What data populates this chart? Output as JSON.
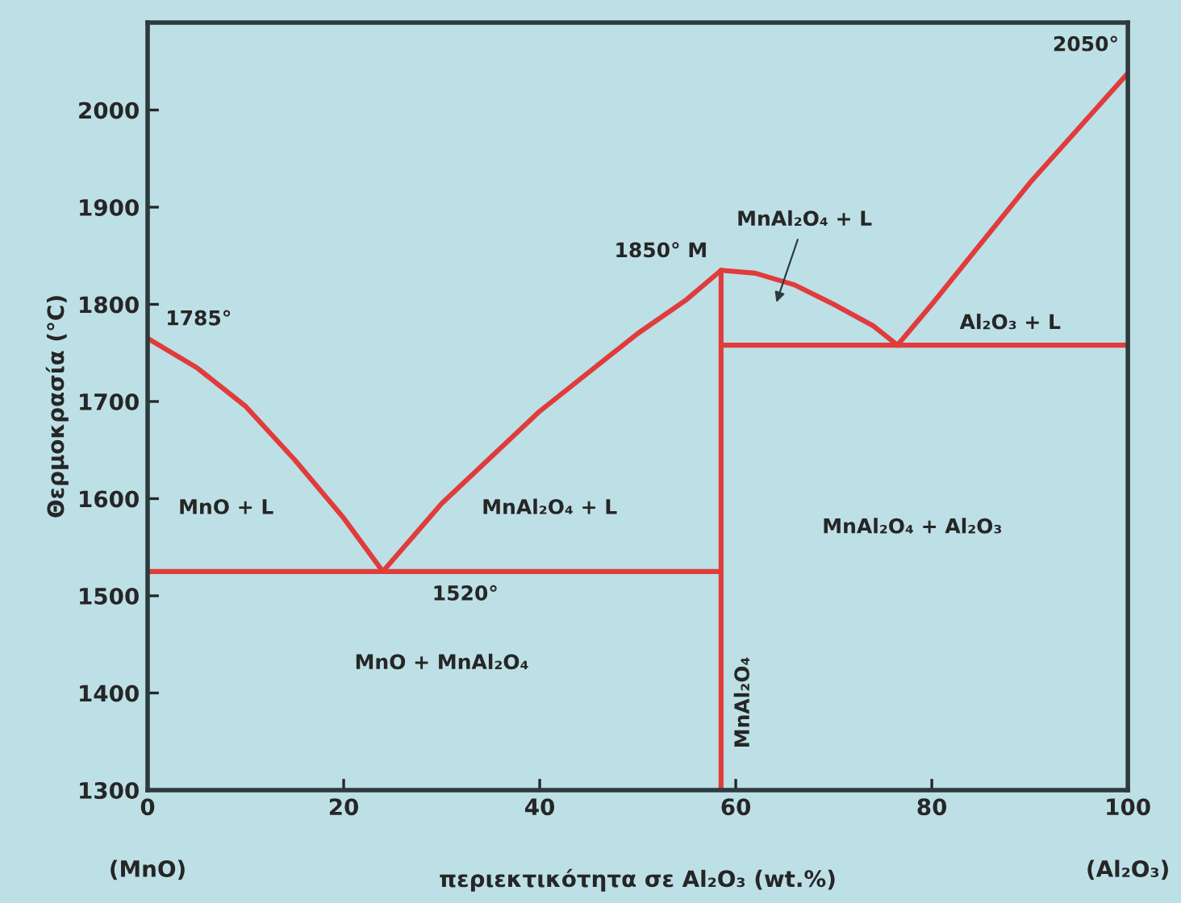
{
  "chart_data": {
    "type": "line",
    "xlabel": "περιεκτικότητα σε Al₂O₃ (wt.%)",
    "ylabel": "Θερμοκρασία (°C)",
    "xlim": [
      0,
      100
    ],
    "ylim": [
      1300,
      2090
    ],
    "xticks": [
      0,
      20,
      40,
      60,
      80,
      100
    ],
    "yticks": [
      1300,
      1400,
      1500,
      1600,
      1700,
      1800,
      1900,
      2000
    ],
    "grid": false,
    "legend": false,
    "marker": "none",
    "line_style": "solid",
    "series": [
      {
        "color": "#e03c3c",
        "x": [
          0,
          5,
          10,
          15,
          20,
          24
        ],
        "values": [
          1765,
          1735,
          1695,
          1640,
          1580,
          1525
        ]
      },
      {
        "color": "#e03c3c",
        "x": [
          24,
          30,
          40,
          50,
          55,
          58.5
        ],
        "values": [
          1525,
          1595,
          1690,
          1770,
          1805,
          1835
        ]
      },
      {
        "color": "#e03c3c",
        "x": [
          58.5,
          62,
          66,
          70,
          74,
          76.5
        ],
        "values": [
          1835,
          1832,
          1820,
          1800,
          1778,
          1758
        ]
      },
      {
        "color": "#e03c3c",
        "x": [
          76.5,
          80,
          90,
          100
        ],
        "values": [
          1758,
          1800,
          1925,
          2038
        ]
      },
      {
        "color": "#e03c3c",
        "x": [
          0,
          58.5
        ],
        "values": [
          1525,
          1525
        ]
      },
      {
        "color": "#e03c3c",
        "x": [
          58.5,
          100
        ],
        "values": [
          1758,
          1758
        ]
      },
      {
        "color": "#e03c3c",
        "x": [
          58.5,
          58.5
        ],
        "values": [
          1300,
          1835
        ]
      }
    ],
    "annotations": [
      {
        "text": "1785°",
        "x": 0,
        "y": 1765
      },
      {
        "text": "1520°",
        "x": 24,
        "y": 1525
      },
      {
        "text": "1850° M",
        "x": 58.5,
        "y": 1835
      },
      {
        "text": "2050°",
        "x": 100,
        "y": 2038
      },
      "MnAl₂O₄ + L",
      "MnO + L",
      "MnAl₂O₄ + L",
      "MnO + MnAl₂O₄",
      "MnAl₂O₄ + Al₂O₃",
      "Al₂O₃ + L",
      "MnAl₂O₄",
      "(MnO)",
      "(Al₂O₃)"
    ]
  }
}
